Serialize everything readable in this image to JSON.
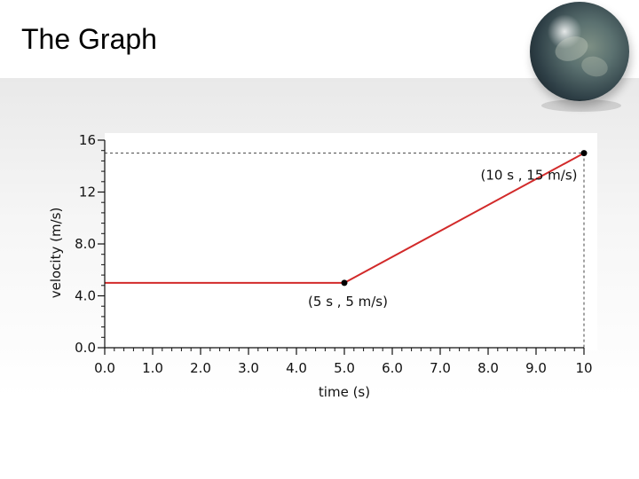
{
  "slide": {
    "title": "The Graph"
  },
  "chart_data": {
    "type": "line",
    "x": [
      0,
      5,
      10
    ],
    "series": [
      {
        "values": [
          5,
          5,
          15
        ],
        "color": "#d22a2a"
      }
    ],
    "xlabel": "time (s)",
    "ylabel": "velocity (m/s)",
    "xlim": [
      0,
      10
    ],
    "ylim": [
      0,
      16
    ],
    "xticks": [
      "0.0",
      "1.0",
      "2.0",
      "3.0",
      "4.0",
      "5.0",
      "6.0",
      "7.0",
      "8.0",
      "9.0",
      "10"
    ],
    "yticks": [
      "0.0",
      "4.0",
      "8.0",
      "12",
      "16"
    ],
    "points": [
      {
        "x": 5,
        "y": 5,
        "label": "(5 s , 5 m/s)"
      },
      {
        "x": 10,
        "y": 15,
        "label": "(10 s , 15 m/s)"
      }
    ],
    "guide_line_y": 15,
    "grid": false
  }
}
